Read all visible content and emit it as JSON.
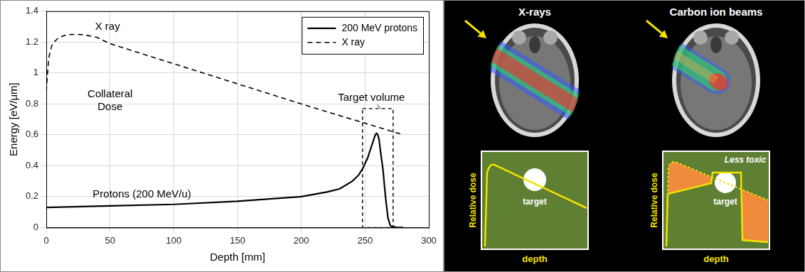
{
  "chart_data": {
    "type": "line",
    "x_label": "Depth [mm]",
    "y_label": "Energy [eV/μm]",
    "xlim": [
      0,
      300
    ],
    "xticks": [
      0,
      50,
      100,
      150,
      200,
      250,
      300
    ],
    "ylim": [
      0,
      1.4
    ],
    "yticks": [
      0,
      0.2,
      0.4,
      0.6,
      0.8,
      1,
      1.2,
      1.4
    ],
    "grid": true,
    "legend": "upper right",
    "series": [
      {
        "name": "200 MeV protons",
        "color": "#000000",
        "line_style": "solid",
        "x": [
          0,
          50,
          100,
          150,
          200,
          220,
          230,
          240,
          245,
          248,
          252,
          256,
          258,
          259,
          260,
          261,
          262,
          264,
          266,
          268,
          270,
          275,
          280
        ],
        "values": [
          0.13,
          0.14,
          0.15,
          0.17,
          0.2,
          0.23,
          0.25,
          0.3,
          0.34,
          0.38,
          0.45,
          0.55,
          0.6,
          0.61,
          0.6,
          0.57,
          0.5,
          0.38,
          0.2,
          0.06,
          0.01,
          0,
          0
        ]
      },
      {
        "name": "X ray",
        "color": "#000000",
        "line_style": "dashed",
        "x": [
          0,
          1,
          2,
          4,
          6,
          10,
          15,
          20,
          25,
          30,
          40,
          50,
          100,
          150,
          200,
          250,
          280
        ],
        "values": [
          0.88,
          1.0,
          1.1,
          1.17,
          1.2,
          1.23,
          1.245,
          1.25,
          1.25,
          1.247,
          1.23,
          1.19,
          1.06,
          0.93,
          0.8,
          0.675,
          0.6
        ]
      }
    ],
    "annotations": [
      {
        "text": "X ray"
      },
      {
        "text": "Collateral Dose"
      },
      {
        "text": "Protons (200 MeV/u)"
      },
      {
        "text": "Target volume",
        "box": {
          "x": [
            248,
            272
          ],
          "y": [
            0,
            0.77
          ]
        }
      }
    ]
  },
  "diagram": {
    "panels": [
      {
        "title": "X-rays",
        "plot": {
          "y_label": "Relative dose",
          "x_label": "depth",
          "target_label": "target"
        }
      },
      {
        "title": "Carbon ion beams",
        "plot": {
          "y_label": "Relative dose",
          "x_label": "depth",
          "target_label": "target",
          "annotation": "Less toxic"
        }
      }
    ]
  }
}
